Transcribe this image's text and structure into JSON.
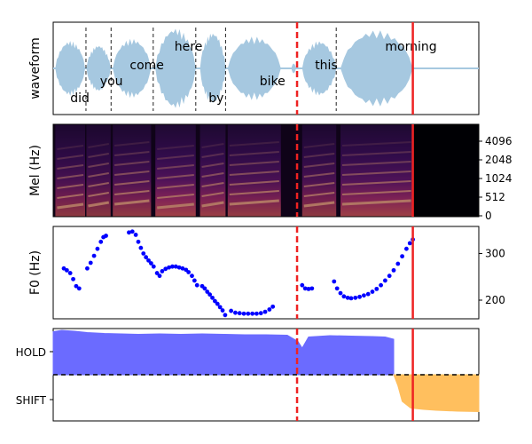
{
  "chart_data": [
    {
      "panel": "waveform",
      "type": "area",
      "ylabel": "waveform",
      "time_range": [
        0,
        1
      ],
      "words": [
        {
          "text": "did",
          "x": 0.04,
          "pos": "low"
        },
        {
          "text": "you",
          "x": 0.11,
          "pos": "mid"
        },
        {
          "text": "come",
          "x": 0.18,
          "pos": "upmid"
        },
        {
          "text": "here",
          "x": 0.285,
          "pos": "top"
        },
        {
          "text": "by",
          "x": 0.365,
          "pos": "low"
        },
        {
          "text": "bike",
          "x": 0.485,
          "pos": "mid"
        },
        {
          "text": "this",
          "x": 0.615,
          "pos": "upmid"
        },
        {
          "text": "morning",
          "x": 0.78,
          "pos": "top"
        }
      ],
      "word_boundaries": [
        0.077,
        0.136,
        0.235,
        0.335,
        0.405,
        0.665
      ],
      "bursts": [
        {
          "start": 0.005,
          "end": 0.075,
          "amp": 0.65
        },
        {
          "start": 0.078,
          "end": 0.135,
          "amp": 0.55
        },
        {
          "start": 0.14,
          "end": 0.23,
          "amp": 0.7
        },
        {
          "start": 0.24,
          "end": 0.335,
          "amp": 0.95
        },
        {
          "start": 0.345,
          "end": 0.405,
          "amp": 0.85
        },
        {
          "start": 0.41,
          "end": 0.535,
          "amp": 0.75
        },
        {
          "start": 0.56,
          "end": 0.57,
          "amp": 0.12
        },
        {
          "start": 0.585,
          "end": 0.665,
          "amp": 0.65
        },
        {
          "start": 0.675,
          "end": 0.845,
          "amp": 0.9
        }
      ],
      "color": "#a6c8e0"
    },
    {
      "panel": "mel",
      "type": "heatmap",
      "ylabel": "Mel (Hz)",
      "yticks": [
        "4096",
        "2048",
        "1024",
        "512",
        "0"
      ],
      "colormap": "magma",
      "active_range": [
        0,
        0.845
      ]
    },
    {
      "panel": "f0",
      "type": "scatter",
      "ylabel": "F0 (Hz)",
      "ylim": [
        160,
        358
      ],
      "yticks": [
        200,
        300
      ],
      "color": "#0000ff",
      "segments": [
        {
          "x": [
            0.025,
            0.032,
            0.04,
            0.047,
            0.054,
            0.061
          ],
          "y": [
            268,
            264,
            258,
            245,
            230,
            225
          ]
        },
        {
          "x": [
            0.08,
            0.088,
            0.096,
            0.104,
            0.112,
            0.118,
            0.124
          ],
          "y": [
            268,
            280,
            295,
            310,
            325,
            335,
            338
          ]
        },
        {
          "x": [
            0.178,
            0.186,
            0.194,
            0.2,
            0.206,
            0.212,
            0.218,
            0.224,
            0.23,
            0.236
          ],
          "y": [
            345,
            347,
            340,
            325,
            312,
            300,
            292,
            285,
            279,
            272
          ]
        },
        {
          "x": [
            0.244,
            0.25,
            0.256,
            0.264,
            0.272,
            0.28,
            0.288,
            0.296,
            0.304,
            0.312,
            0.318,
            0.326,
            0.332,
            0.338
          ],
          "y": [
            258,
            252,
            262,
            267,
            270,
            272,
            272,
            270,
            268,
            265,
            260,
            252,
            242,
            232
          ]
        },
        {
          "x": [
            0.35,
            0.356,
            0.362,
            0.368,
            0.374,
            0.38,
            0.386,
            0.392,
            0.398,
            0.404
          ],
          "y": [
            230,
            225,
            218,
            212,
            205,
            198,
            192,
            185,
            178,
            168
          ]
        },
        {
          "x": [
            0.418,
            0.428,
            0.438,
            0.448,
            0.458,
            0.468,
            0.478,
            0.488,
            0.498,
            0.508,
            0.516
          ],
          "y": [
            177,
            173,
            172,
            171,
            171,
            171,
            171,
            172,
            175,
            180,
            186
          ]
        },
        {
          "x": [
            0.585,
            0.592,
            0.6,
            0.608
          ],
          "y": [
            232,
            225,
            224,
            225
          ]
        },
        {
          "x": [
            0.66,
            0.667,
            0.675,
            0.683,
            0.692,
            0.7,
            0.71,
            0.72,
            0.73,
            0.74,
            0.75,
            0.76,
            0.77,
            0.78,
            0.79,
            0.8,
            0.81,
            0.82,
            0.83,
            0.838,
            0.845
          ],
          "y": [
            240,
            225,
            215,
            208,
            205,
            204,
            205,
            207,
            210,
            213,
            218,
            224,
            232,
            242,
            252,
            264,
            278,
            294,
            310,
            322,
            330
          ]
        }
      ]
    },
    {
      "panel": "turn",
      "type": "area",
      "yticks": [
        "HOLD",
        "SHIFT"
      ],
      "threshold": 0,
      "series": [
        {
          "name": "HOLD",
          "color": "#6b6bff",
          "x": [
            0.0,
            0.02,
            0.05,
            0.08,
            0.12,
            0.16,
            0.2,
            0.25,
            0.3,
            0.35,
            0.4,
            0.45,
            0.5,
            0.55,
            0.575,
            0.585,
            0.6,
            0.65,
            0.7,
            0.75,
            0.78,
            0.8
          ],
          "y": [
            0.97,
            1.0,
            0.98,
            0.95,
            0.93,
            0.92,
            0.91,
            0.92,
            0.91,
            0.92,
            0.91,
            0.9,
            0.9,
            0.89,
            0.75,
            0.6,
            0.85,
            0.88,
            0.87,
            0.86,
            0.85,
            0.8
          ]
        },
        {
          "name": "SHIFT",
          "color": "#ffbf5e",
          "x": [
            0.8,
            0.81,
            0.82,
            0.84,
            0.87,
            0.9,
            0.95,
            1.0
          ],
          "y": [
            0.0,
            -0.25,
            -0.6,
            -0.75,
            -0.78,
            -0.8,
            -0.82,
            -0.83
          ]
        }
      ]
    }
  ],
  "markers": {
    "dashed_x": 0.573,
    "solid_x": 0.845,
    "color": "#ee2222"
  }
}
